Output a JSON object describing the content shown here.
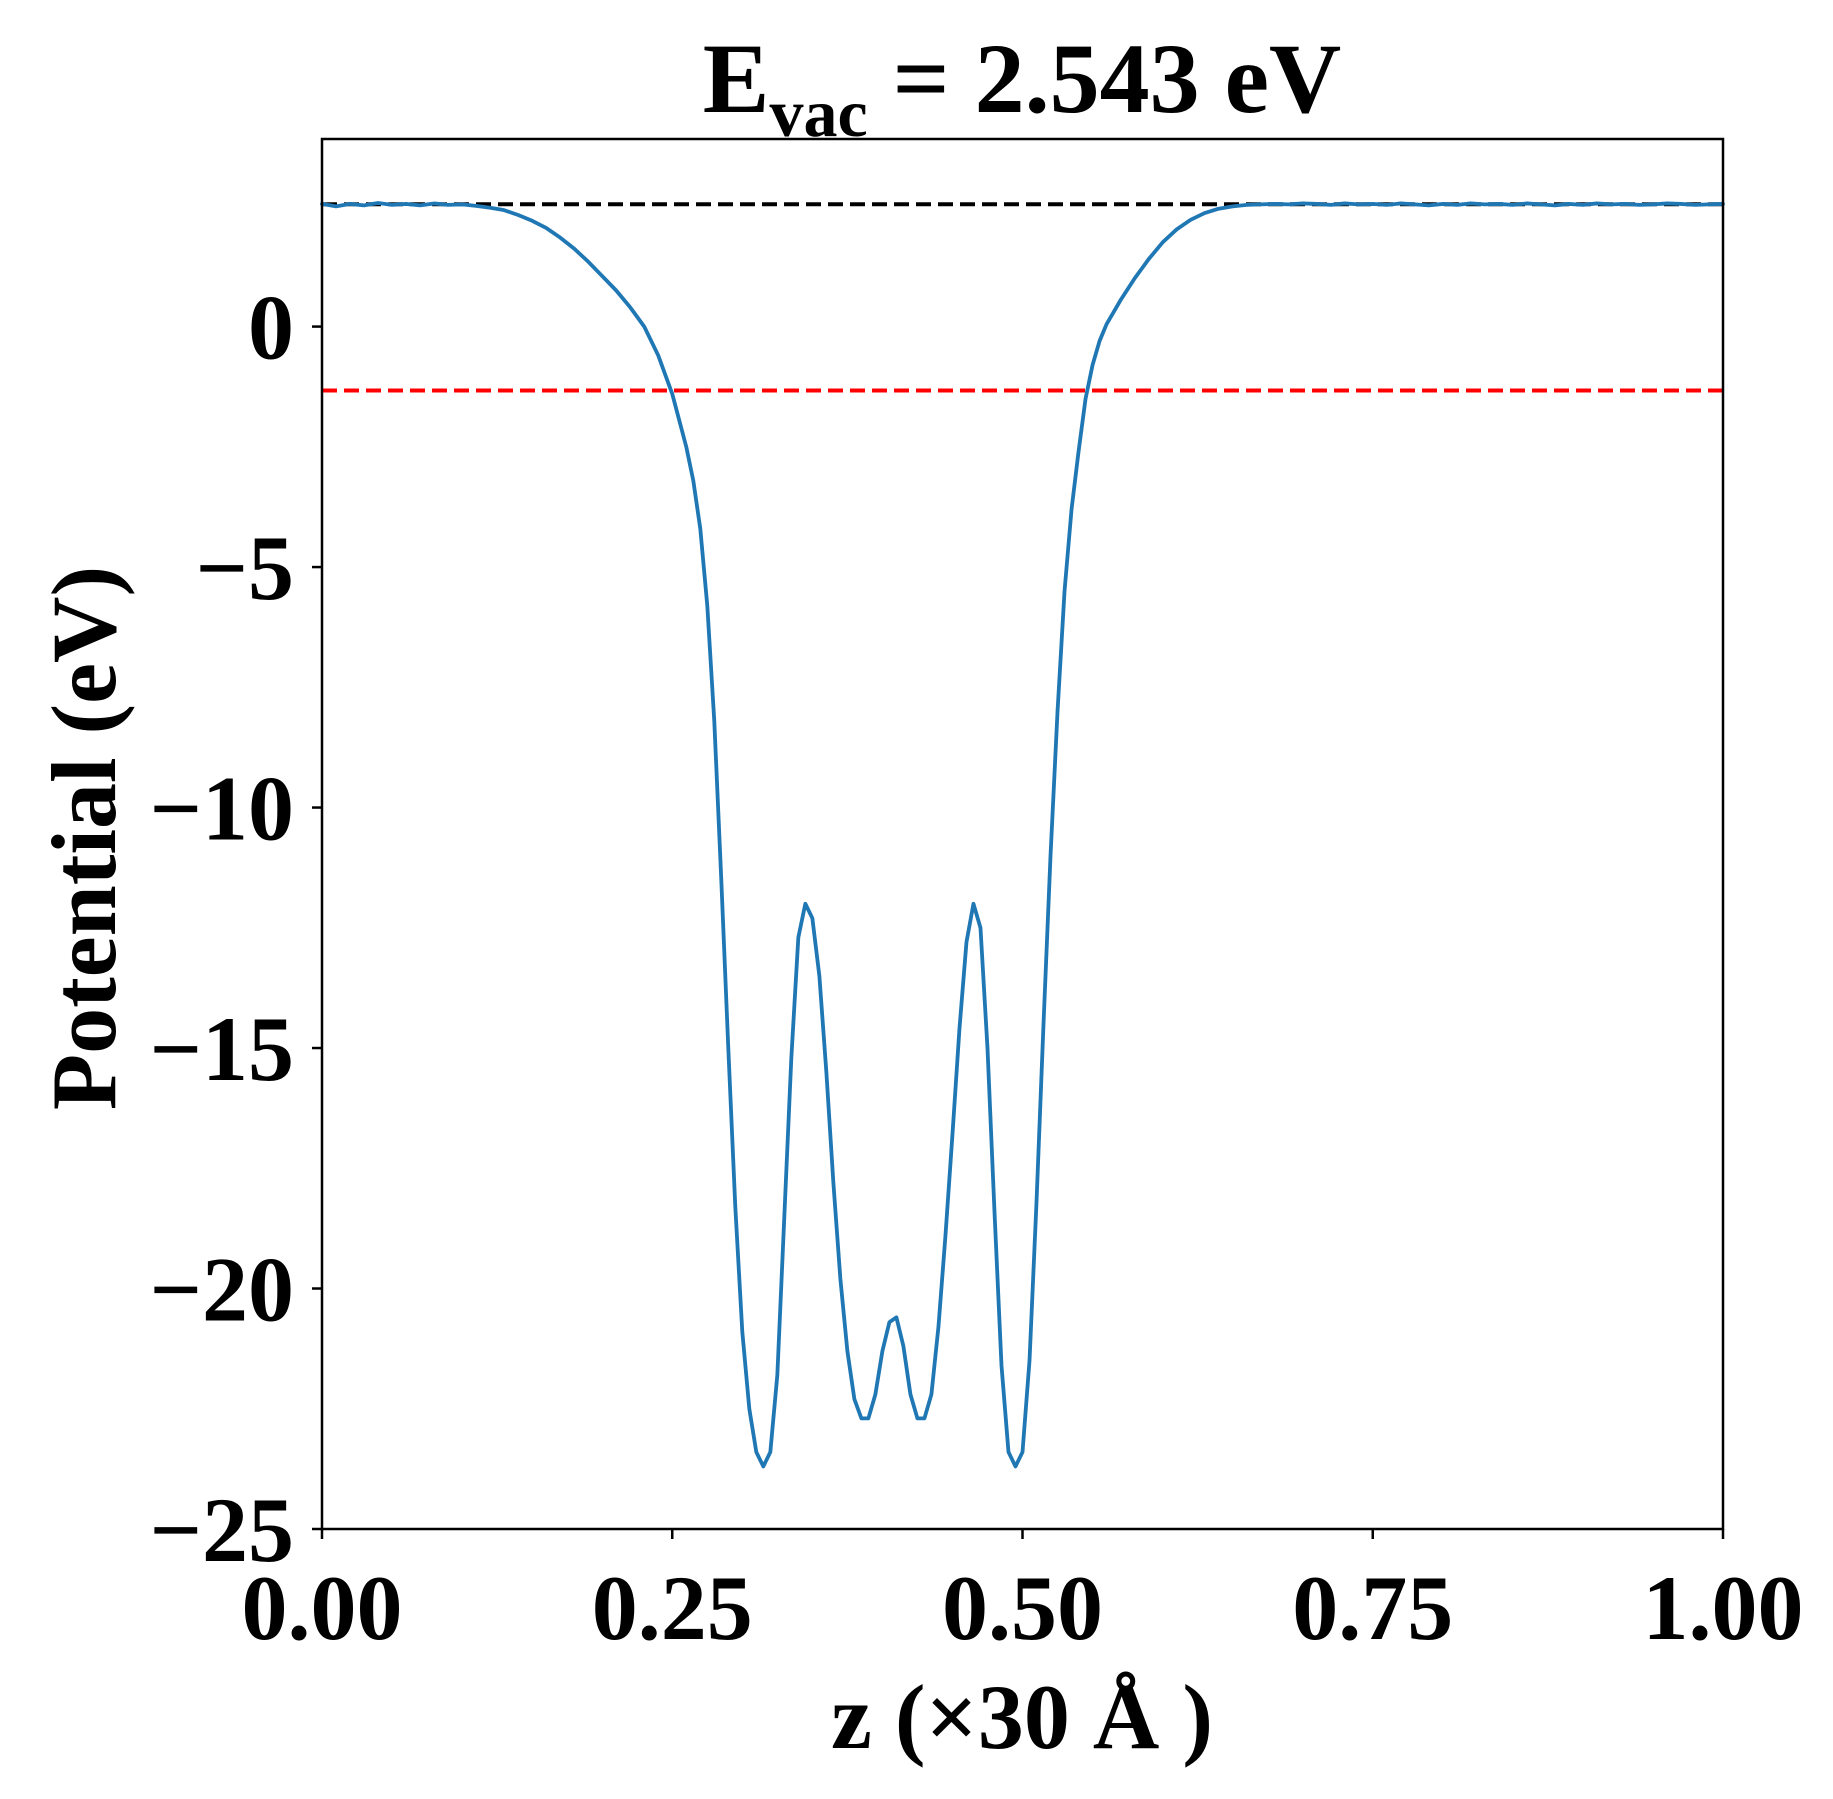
{
  "chart_data": {
    "type": "line",
    "title_main": "E",
    "title_sub": "vac",
    "title_rest": " = 2.543 eV",
    "xlabel": "z (×30 Å )",
    "ylabel": "Potential (eV)",
    "xlim": [
      0,
      1
    ],
    "ylim": [
      -25,
      3.9
    ],
    "xticks": [
      0,
      0.25,
      0.5,
      0.75,
      1.0
    ],
    "xtick_labels": [
      "0.00",
      "0.25",
      "0.50",
      "0.75",
      "1.00"
    ],
    "yticks": [
      0,
      -5,
      -10,
      -15,
      -20,
      -25
    ],
    "ytick_labels": [
      "0",
      "−5",
      "−10",
      "−15",
      "−20",
      "−25"
    ],
    "grid": false,
    "legend": "none",
    "series": [
      {
        "color": "#1f77b4",
        "x": [
          0.0,
          0.01,
          0.02,
          0.03,
          0.04,
          0.05,
          0.06,
          0.07,
          0.08,
          0.09,
          0.1,
          0.11,
          0.12,
          0.13,
          0.14,
          0.15,
          0.16,
          0.17,
          0.18,
          0.19,
          0.2,
          0.21,
          0.22,
          0.23,
          0.24,
          0.25,
          0.26,
          0.265,
          0.27,
          0.275,
          0.28,
          0.285,
          0.29,
          0.295,
          0.3,
          0.305,
          0.31,
          0.315,
          0.32,
          0.325,
          0.33,
          0.335,
          0.34,
          0.345,
          0.35,
          0.355,
          0.36,
          0.365,
          0.37,
          0.375,
          0.38,
          0.385,
          0.39,
          0.395,
          0.4,
          0.405,
          0.41,
          0.415,
          0.42,
          0.425,
          0.43,
          0.435,
          0.44,
          0.445,
          0.45,
          0.455,
          0.46,
          0.465,
          0.47,
          0.475,
          0.48,
          0.485,
          0.49,
          0.495,
          0.5,
          0.505,
          0.51,
          0.515,
          0.52,
          0.525,
          0.53,
          0.535,
          0.54,
          0.545,
          0.55,
          0.555,
          0.56,
          0.565,
          0.57,
          0.58,
          0.59,
          0.6,
          0.61,
          0.62,
          0.63,
          0.64,
          0.65,
          0.66,
          0.67,
          0.68,
          0.69,
          0.7,
          0.71,
          0.72,
          0.73,
          0.74,
          0.75,
          0.76,
          0.77,
          0.78,
          0.79,
          0.8,
          0.81,
          0.82,
          0.83,
          0.84,
          0.85,
          0.86,
          0.87,
          0.88,
          0.89,
          0.9,
          0.91,
          0.92,
          0.93,
          0.94,
          0.95,
          0.96,
          0.97,
          0.98,
          0.99,
          1.0
        ],
        "y": [
          2.55,
          2.5,
          2.55,
          2.52,
          2.57,
          2.53,
          2.55,
          2.52,
          2.56,
          2.53,
          2.54,
          2.51,
          2.47,
          2.42,
          2.32,
          2.2,
          2.05,
          1.85,
          1.62,
          1.35,
          1.05,
          0.75,
          0.4,
          0.0,
          -0.6,
          -1.4,
          -2.5,
          -3.2,
          -4.2,
          -5.8,
          -8.2,
          -11.5,
          -15.0,
          -18.3,
          -20.9,
          -22.5,
          -23.4,
          -23.7,
          -23.4,
          -21.8,
          -18.5,
          -15.2,
          -12.7,
          -12.0,
          -12.3,
          -13.5,
          -15.5,
          -17.8,
          -19.8,
          -21.3,
          -22.3,
          -22.7,
          -22.7,
          -22.2,
          -21.3,
          -20.7,
          -20.6,
          -21.2,
          -22.2,
          -22.7,
          -22.7,
          -22.2,
          -20.8,
          -18.9,
          -16.8,
          -14.6,
          -12.8,
          -12.0,
          -12.5,
          -15.0,
          -18.4,
          -21.6,
          -23.4,
          -23.7,
          -23.4,
          -21.5,
          -18.2,
          -14.5,
          -11.0,
          -8.0,
          -5.5,
          -3.8,
          -2.6,
          -1.5,
          -0.8,
          -0.3,
          0.05,
          0.3,
          0.55,
          1.0,
          1.4,
          1.75,
          2.02,
          2.22,
          2.36,
          2.45,
          2.5,
          2.53,
          2.54,
          2.55,
          2.54,
          2.56,
          2.55,
          2.53,
          2.56,
          2.54,
          2.55,
          2.53,
          2.56,
          2.54,
          2.52,
          2.55,
          2.53,
          2.56,
          2.54,
          2.55,
          2.53,
          2.56,
          2.54,
          2.52,
          2.55,
          2.53,
          2.56,
          2.54,
          2.55,
          2.53,
          2.54,
          2.56,
          2.55,
          2.53,
          2.54,
          2.55
        ]
      }
    ],
    "hlines": [
      {
        "y": 2.543,
        "color": "#000000",
        "style": "dashed"
      },
      {
        "y": -1.33,
        "color": "#ff0000",
        "style": "dashed"
      }
    ]
  }
}
